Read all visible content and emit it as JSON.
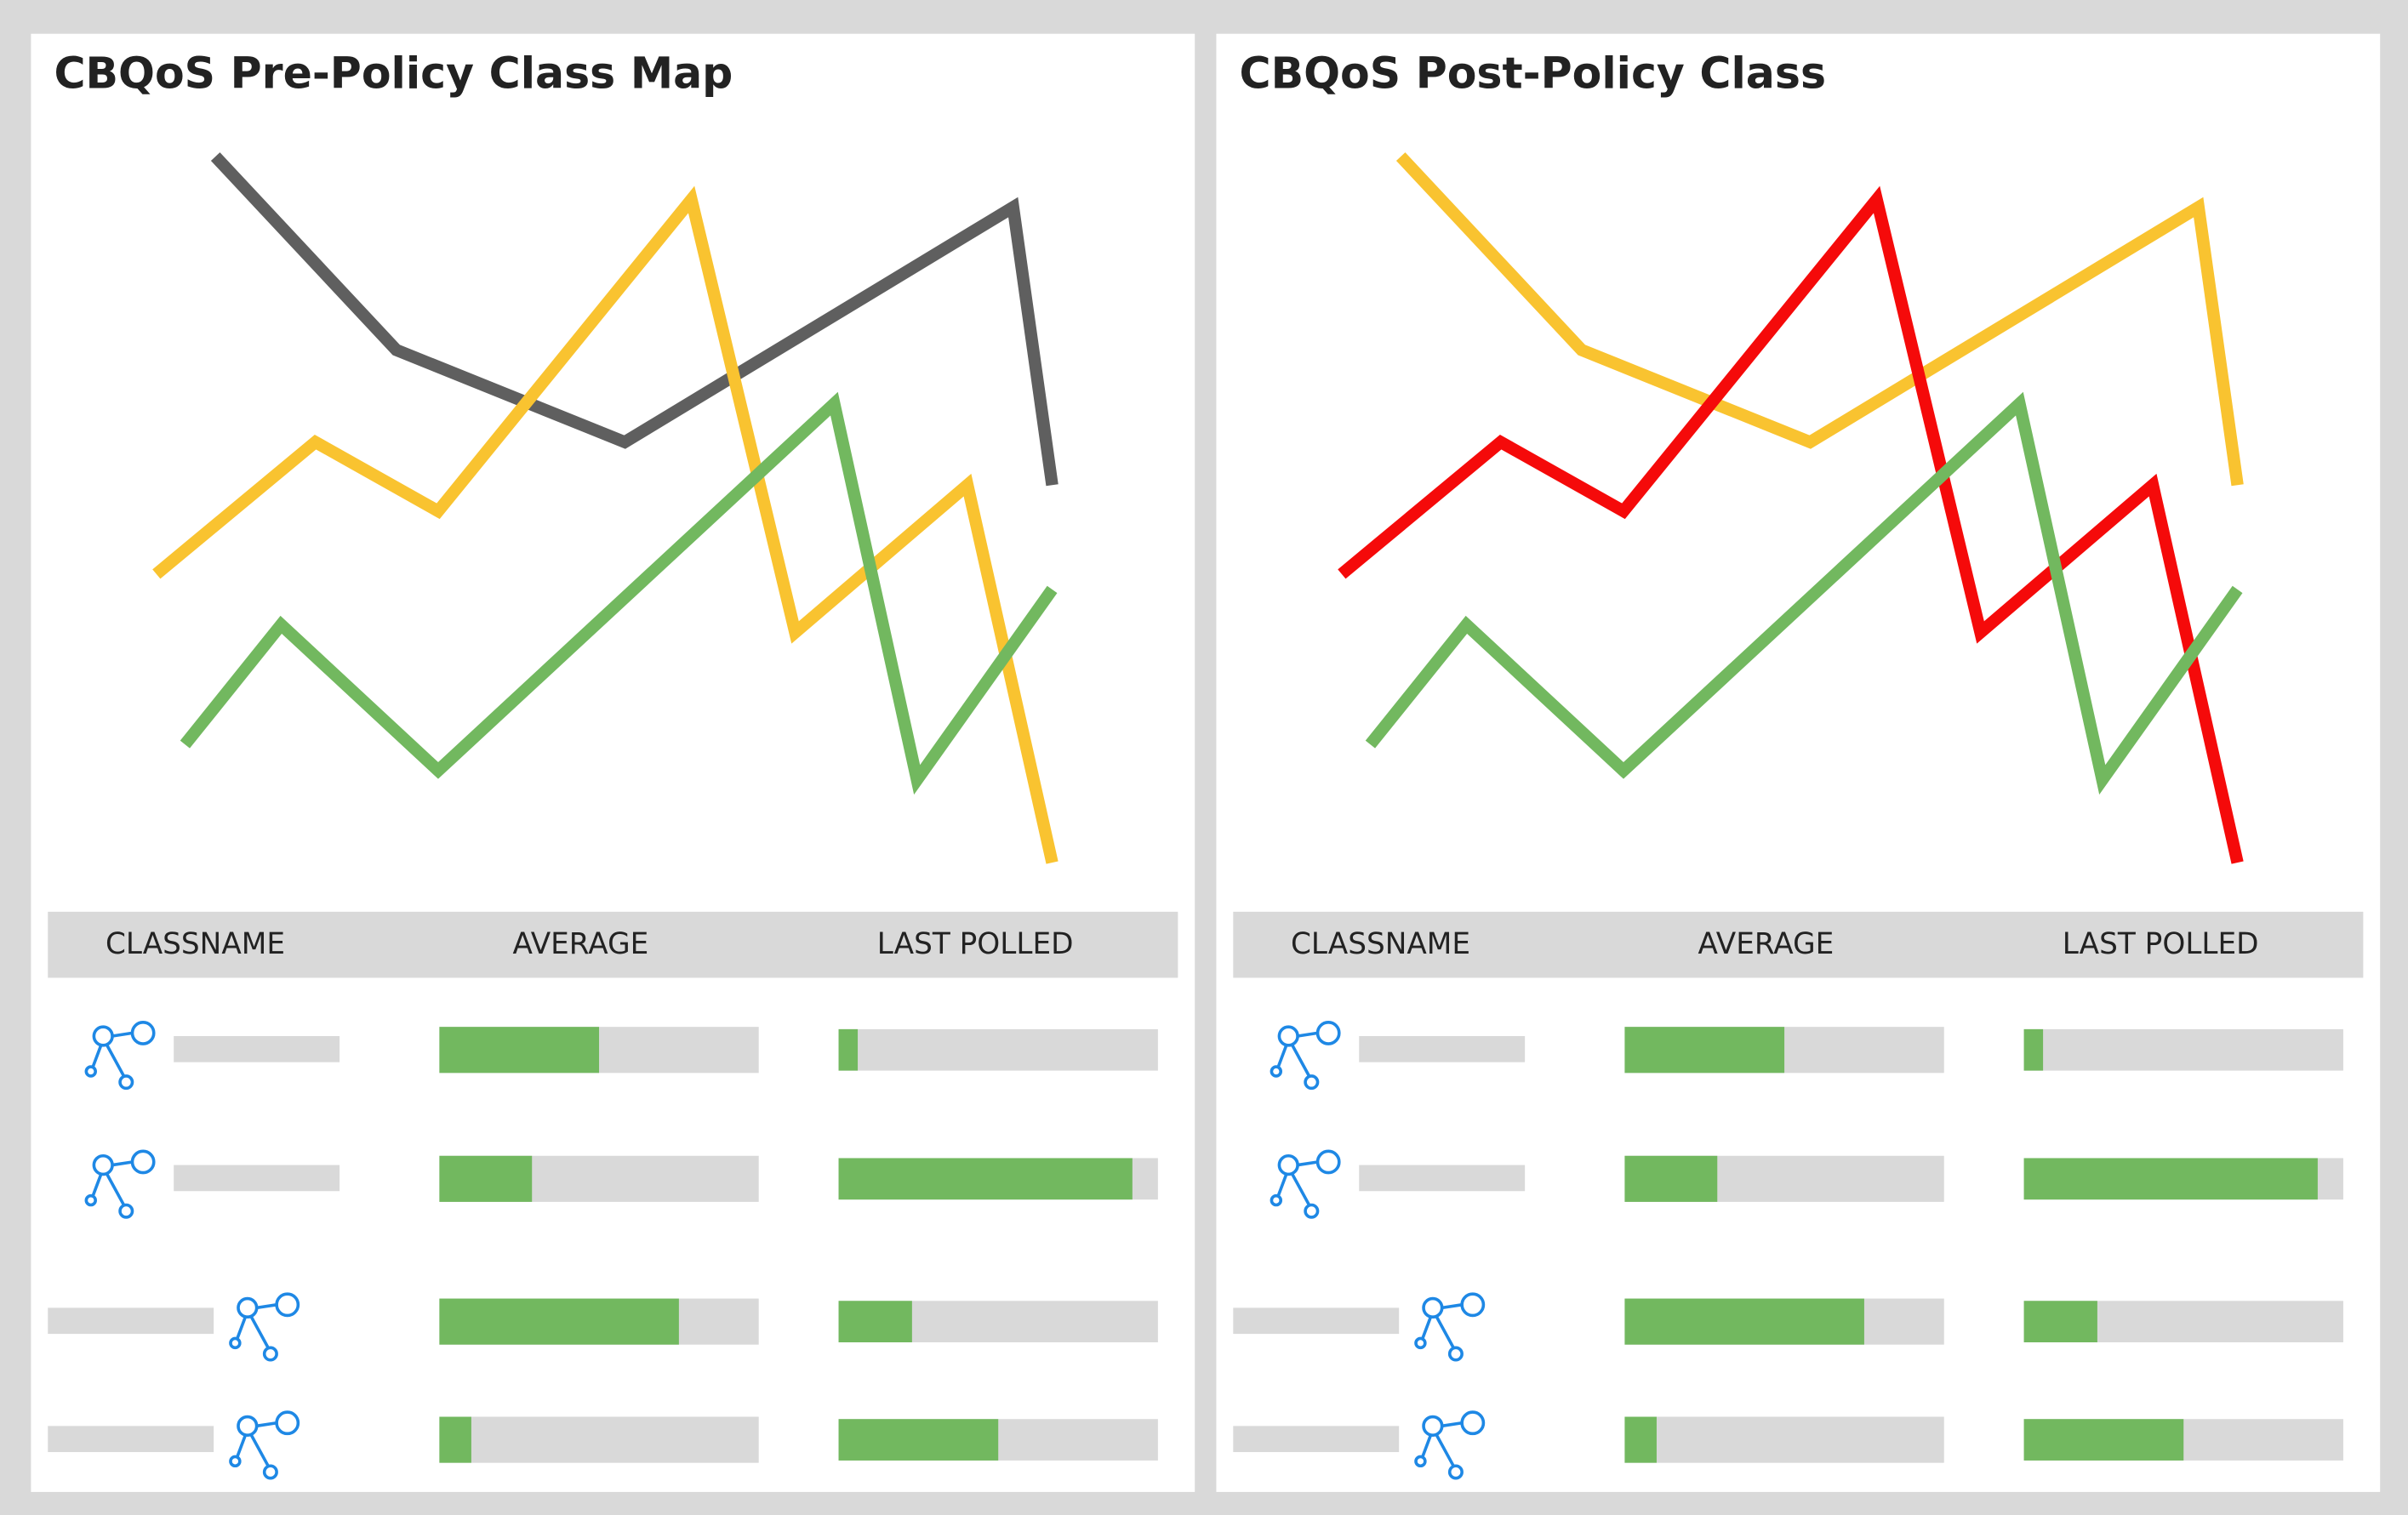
{
  "chart_data": [
    {
      "type": "line",
      "title": "CBQoS Pre-Policy Class Map",
      "xlim": [
        0,
        100
      ],
      "ylim": [
        0,
        100
      ],
      "series": [
        {
          "color": "#5f5f5f",
          "x": [
            9.7,
            28.7,
            52.7,
            93.5,
            97.6
          ],
          "values": [
            95.6,
            70.4,
            58.4,
            89,
            52.8
          ]
        },
        {
          "color": "#f9c330",
          "x": [
            3.5,
            20.2,
            33.1,
            59.7,
            70.6,
            88.7,
            97.6
          ],
          "values": [
            41.2,
            58.4,
            49.4,
            90,
            33.6,
            52.8,
            3.6
          ]
        },
        {
          "color": "#72b85f",
          "x": [
            6.5,
            16.6,
            33.1,
            74.7,
            83.4,
            97.6
          ],
          "values": [
            19,
            34.6,
            15.6,
            63.4,
            14.4,
            39.2
          ]
        }
      ],
      "table": {
        "columns": [
          "CLASSNAME",
          "AVERAGE",
          "LAST POLLED"
        ],
        "range": [
          0,
          100
        ],
        "color": "#72b85f",
        "rows": [
          {
            "icon": "left",
            "average": 50,
            "last_polled": 6
          },
          {
            "icon": "left",
            "average": 29,
            "last_polled": 92
          },
          {
            "icon": "right",
            "average": 75,
            "last_polled": 23
          },
          {
            "icon": "right",
            "average": 10,
            "last_polled": 50
          }
        ]
      }
    },
    {
      "type": "line",
      "title": "CBQoS Post-Policy Class",
      "xlim": [
        0,
        100
      ],
      "ylim": [
        0,
        100
      ],
      "series": [
        {
          "color": "#f9c330",
          "x": [
            9.7,
            28.7,
            52.7,
            93.5,
            97.6
          ],
          "values": [
            95.6,
            70.4,
            58.4,
            89,
            52.8
          ]
        },
        {
          "color": "#f50a0a",
          "x": [
            3.5,
            20.2,
            33.1,
            59.7,
            70.6,
            88.7,
            97.6
          ],
          "values": [
            41.2,
            58.4,
            49.4,
            90,
            33.6,
            52.8,
            3.6
          ]
        },
        {
          "color": "#72b85f",
          "x": [
            6.5,
            16.6,
            33.1,
            74.7,
            83.4,
            97.6
          ],
          "values": [
            19,
            34.6,
            15.6,
            63.4,
            14.4,
            39.2
          ]
        }
      ],
      "table": {
        "columns": [
          "CLASSNAME",
          "AVERAGE",
          "LAST POLLED"
        ],
        "range": [
          0,
          100
        ],
        "color": "#72b85f",
        "rows": [
          {
            "icon": "left",
            "average": 50,
            "last_polled": 6
          },
          {
            "icon": "left",
            "average": 29,
            "last_polled": 92
          },
          {
            "icon": "right",
            "average": 75,
            "last_polled": 23
          },
          {
            "icon": "right",
            "average": 10,
            "last_polled": 50
          }
        ]
      }
    }
  ]
}
